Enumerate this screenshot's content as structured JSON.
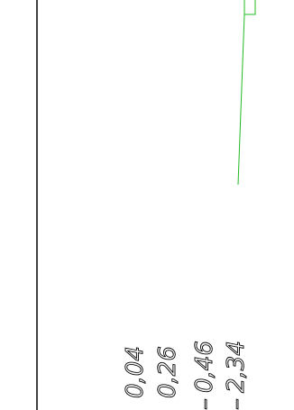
{
  "drawing": {
    "line_color": "#000000",
    "green_line_color": "#22bb22",
    "dimension_labels": [
      {
        "text": "0,04",
        "prefix": ""
      },
      {
        "text": "0,26",
        "prefix": ""
      },
      {
        "text": "0,46",
        "prefix": "–"
      },
      {
        "text": "2,34",
        "prefix": "–"
      }
    ]
  }
}
